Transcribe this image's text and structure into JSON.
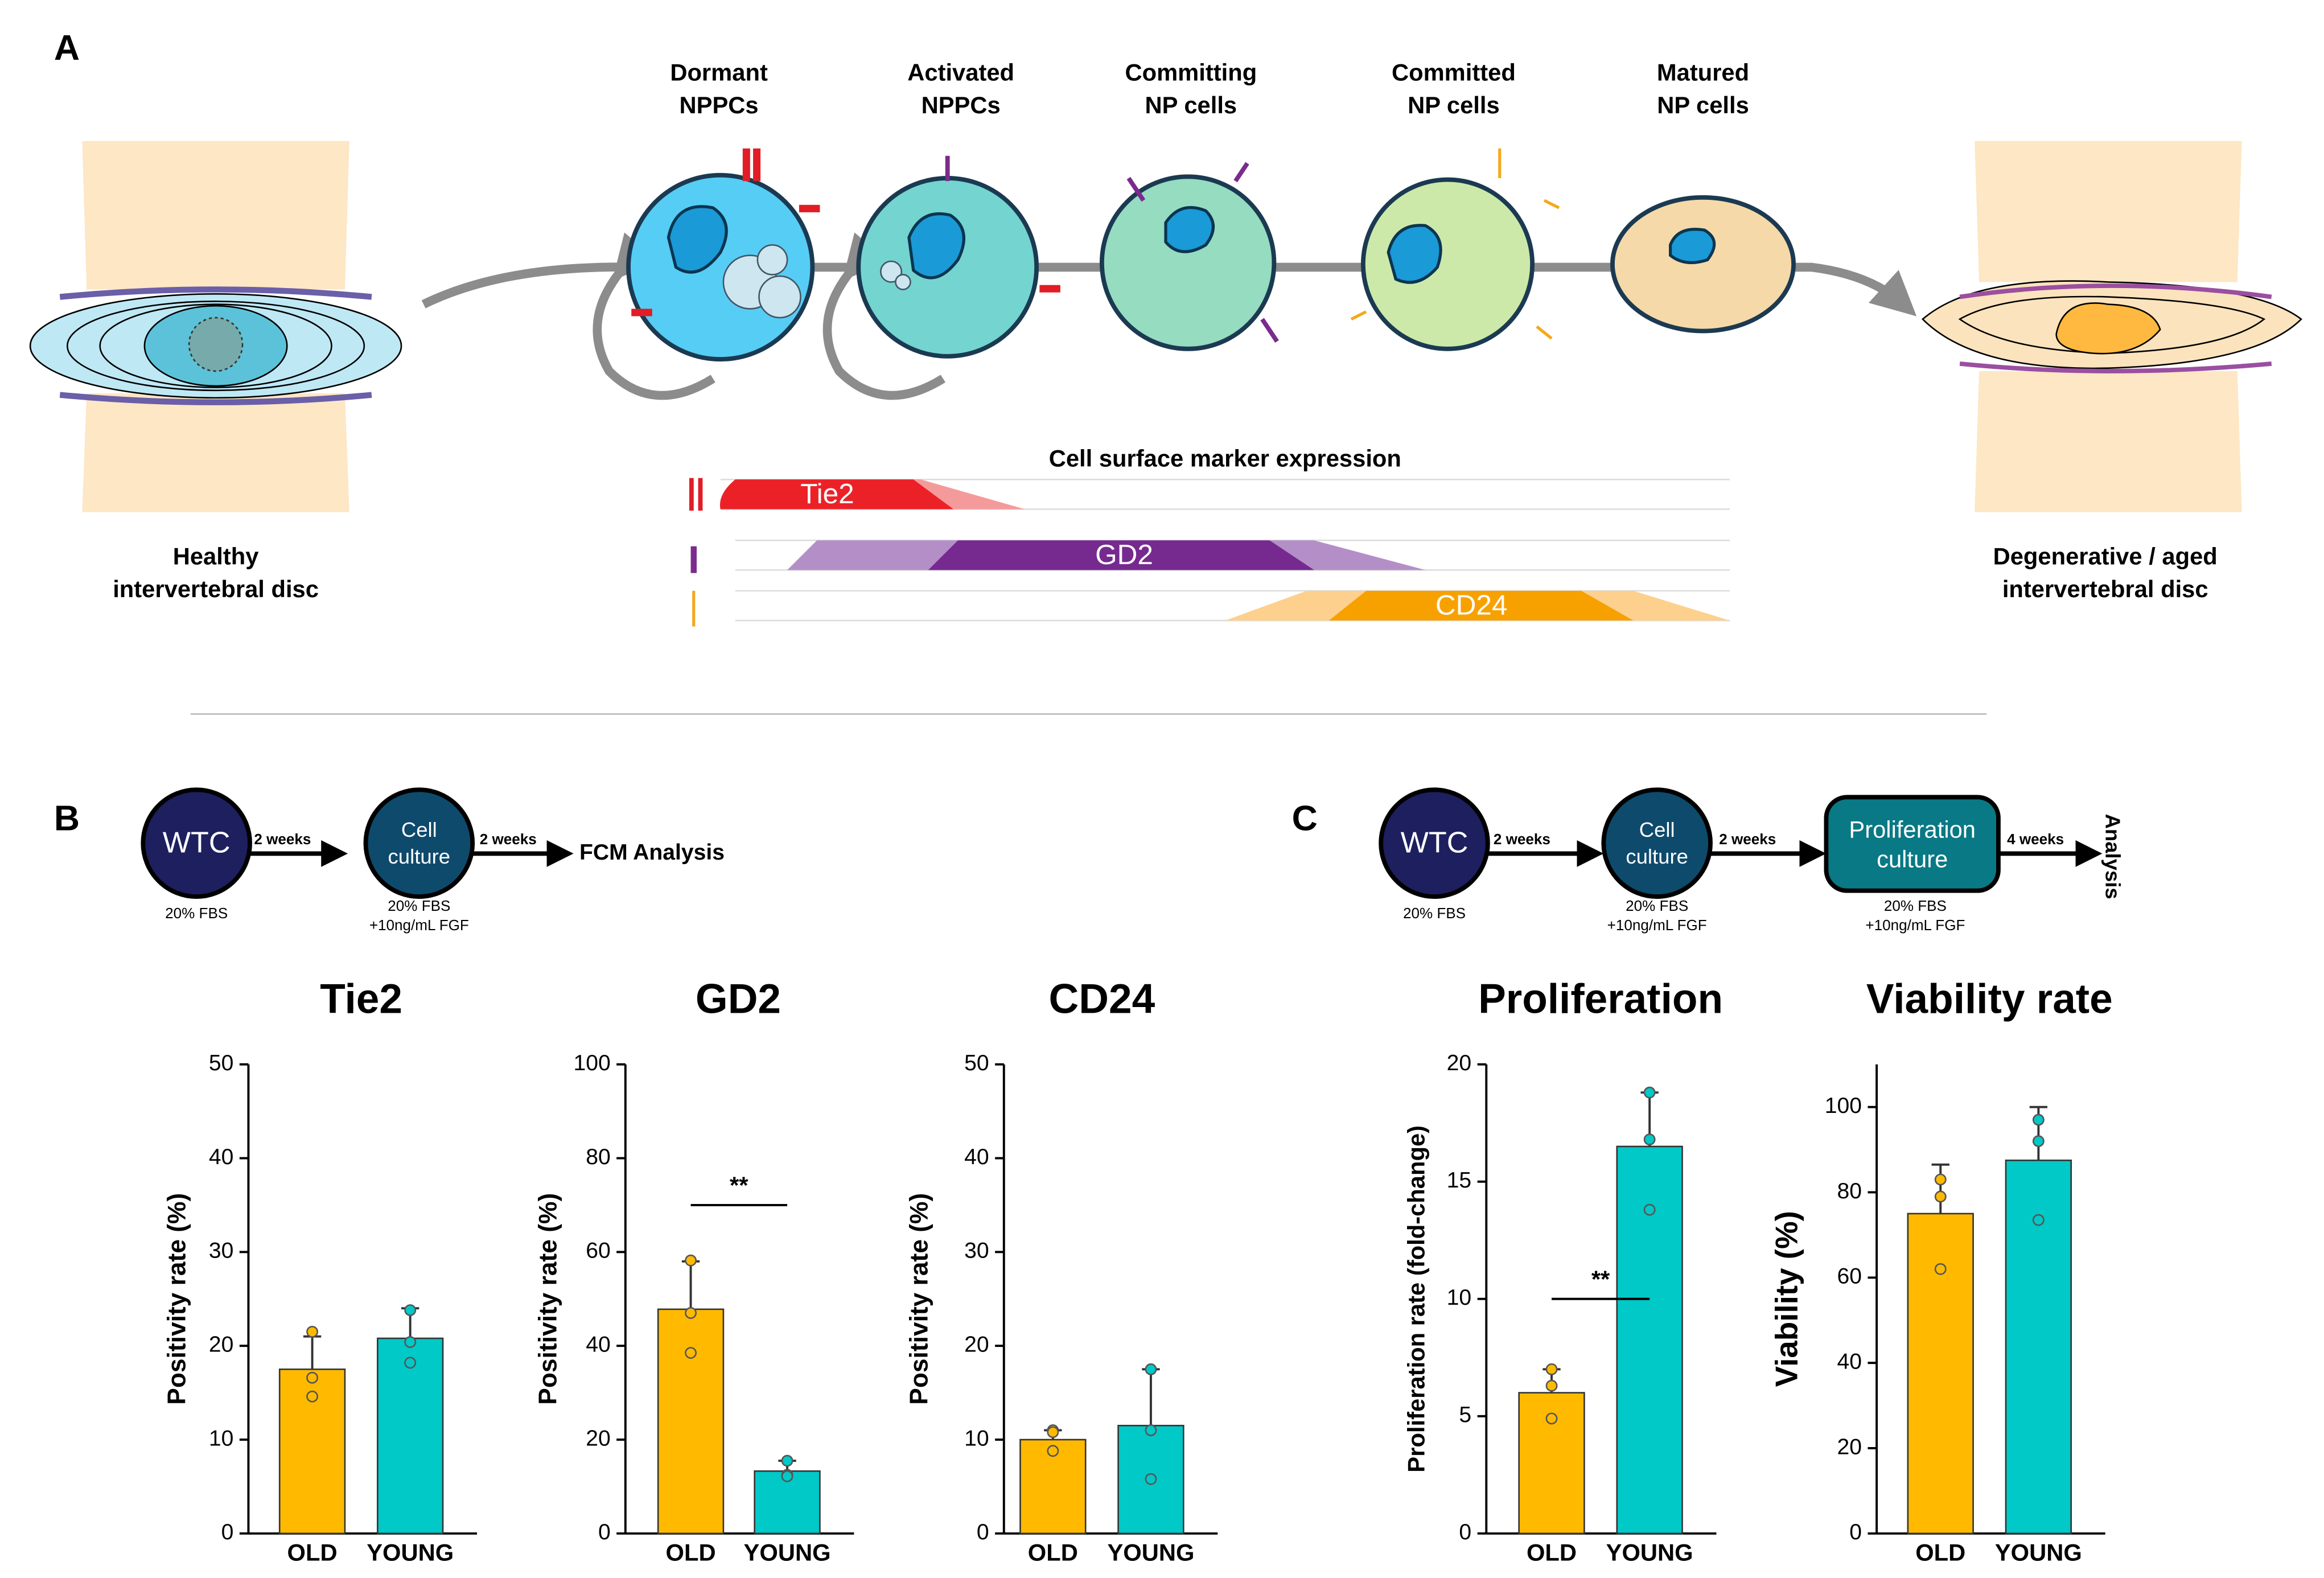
{
  "panels": {
    "a": "A",
    "b": "B",
    "c": "C"
  },
  "diagram": {
    "stages": [
      [
        "Dormant",
        "NPPCs"
      ],
      [
        "Activated",
        "NPPCs"
      ],
      [
        "Committing",
        "NP cells"
      ],
      [
        "Committed",
        "NP cells"
      ],
      [
        "Matured",
        "NP cells"
      ]
    ],
    "healthy": [
      "Healthy",
      "intervertebral disc"
    ],
    "degenerative": [
      "Degenerative / aged",
      "intervertebral disc"
    ],
    "marker_title": "Cell surface marker expression",
    "markers": [
      "Tie2",
      "GD2",
      "CD24"
    ]
  },
  "workflow_b": {
    "start": "WTC",
    "start_note": "20% FBS",
    "step1": "2 weeks",
    "culture": [
      "Cell",
      "culture"
    ],
    "culture_note": [
      "20% FBS",
      "+10ng/mL FGF"
    ],
    "step2": "2 weeks",
    "end": "FCM Analysis"
  },
  "workflow_c": {
    "start": "WTC",
    "start_note": "20% FBS",
    "step1": "2 weeks",
    "culture": [
      "Cell",
      "culture"
    ],
    "culture_note": [
      "20% FBS",
      "+10ng/mL FGF"
    ],
    "step2": "2 weeks",
    "prolif": [
      "Proliferation",
      "culture"
    ],
    "prolif_note": [
      "20% FBS",
      "+10ng/mL FGF"
    ],
    "step3": "4 weeks",
    "end": "Analysis"
  },
  "chart_data": [
    {
      "type": "bar",
      "title": "Tie2",
      "ylabel": "Positivity rate (%)",
      "categories": [
        "OLD",
        "YOUNG"
      ],
      "colors": [
        "#ffba00",
        "#00c9c7"
      ],
      "values": [
        17.5,
        20.8
      ],
      "errors": [
        3.5,
        3.2
      ],
      "points": [
        [
          21.5,
          16.6,
          14.6
        ],
        [
          23.8,
          20.4,
          18.2
        ]
      ],
      "ylim": [
        0,
        50
      ],
      "yticks": [
        0,
        10,
        20,
        30,
        40,
        50
      ]
    },
    {
      "type": "bar",
      "title": "GD2",
      "ylabel": "Positivity rate (%)",
      "categories": [
        "OLD",
        "YOUNG"
      ],
      "colors": [
        "#ffba00",
        "#00c9c7"
      ],
      "values": [
        47.8,
        13.3
      ],
      "errors": [
        10.2,
        2.2
      ],
      "points": [
        [
          58.2,
          47,
          38.5
        ],
        [
          15.5,
          12.5,
          12.2
        ]
      ],
      "significance": {
        "label": "**",
        "value": 70
      },
      "ylim": [
        0,
        100
      ],
      "yticks": [
        0,
        20,
        40,
        60,
        80,
        100
      ]
    },
    {
      "type": "bar",
      "title": "CD24",
      "ylabel": "Positivity rate (%)",
      "categories": [
        "OLD",
        "YOUNG"
      ],
      "colors": [
        "#ffba00",
        "#00c9c7"
      ],
      "values": [
        10,
        11.5
      ],
      "errors": [
        1,
        6
      ],
      "points": [
        [
          11,
          10.8,
          8.8
        ],
        [
          17.5,
          11,
          5.8
        ]
      ],
      "ylim": [
        0,
        50
      ],
      "yticks": [
        0,
        10,
        20,
        30,
        40,
        50
      ]
    },
    {
      "type": "bar",
      "title": "Proliferation",
      "ylabel": "Proliferation rate (fold-change)",
      "categories": [
        "OLD",
        "YOUNG"
      ],
      "colors": [
        "#ffba00",
        "#00c9c7"
      ],
      "values": [
        6.0,
        16.5
      ],
      "errors": [
        1.0,
        2.3
      ],
      "points": [
        [
          7,
          6.3,
          4.9
        ],
        [
          18.8,
          16.8,
          13.8
        ]
      ],
      "significance": {
        "label": "**",
        "value": 10
      },
      "ylim": [
        0,
        20
      ],
      "yticks": [
        0,
        5,
        10,
        15,
        20
      ]
    },
    {
      "type": "bar",
      "title": "Viability rate",
      "ylabel": "Viability (%)",
      "categories": [
        "OLD",
        "YOUNG"
      ],
      "colors": [
        "#ffba00",
        "#00c9c7"
      ],
      "values": [
        75,
        87.5
      ],
      "errors": [
        11.5,
        12.5
      ],
      "points": [
        [
          83,
          79,
          62
        ],
        [
          97,
          92,
          73.5
        ]
      ],
      "ylim": [
        0,
        110
      ],
      "yticks": [
        0,
        20,
        40,
        60,
        80,
        100
      ]
    }
  ]
}
